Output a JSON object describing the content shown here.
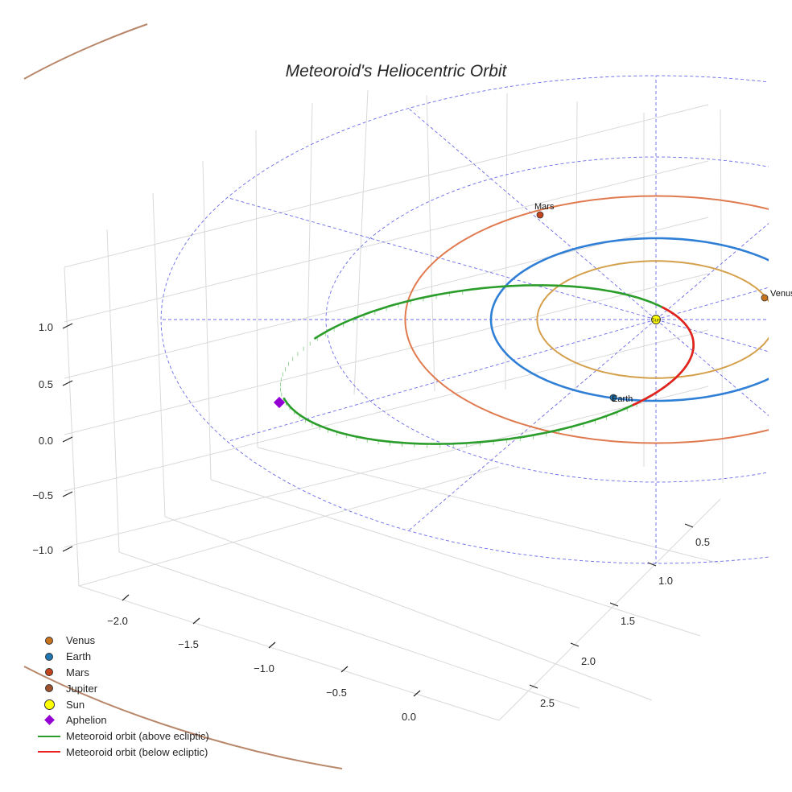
{
  "chart_data": {
    "type": "3d-line",
    "title": "Meteoroid's Heliocentric Orbit",
    "z_ticks": [
      "1.0",
      "0.5",
      "0.0",
      "−0.5",
      "−1.0"
    ],
    "x_ticks": [
      "−2.0",
      "−1.5",
      "−1.0",
      "−0.5",
      "0.0"
    ],
    "y_ticks": [
      "0.5",
      "1.0",
      "1.5",
      "2.0",
      "2.5"
    ],
    "planets": [
      {
        "name": "Venus",
        "label": "Venus",
        "semi_major_axis_au": 0.72,
        "color": "#d4a04b",
        "marker_color": "#c8741f"
      },
      {
        "name": "Earth",
        "label": "Earth",
        "semi_major_axis_au": 1.0,
        "color": "#2f7fd6",
        "marker_color": "#1f77b4"
      },
      {
        "name": "Mars",
        "label": "Mars",
        "semi_major_axis_au": 1.52,
        "color": "#e07b50",
        "marker_color": "#c4451c"
      },
      {
        "name": "Jupiter",
        "label": "Jupiter",
        "semi_major_axis_au": 5.2,
        "color": "#b8876a",
        "marker_color": "#a0522d"
      }
    ],
    "sun": {
      "label": "Sun",
      "color": "#ffff00"
    },
    "aphelion": {
      "label": "Aphelion",
      "color": "#9400d3"
    },
    "meteoroid": {
      "above_label": "Meteoroid orbit (above ecliptic)",
      "below_label": "Meteoroid orbit (below ecliptic)",
      "above_color": "#2a9d2a",
      "below_color": "#e82020"
    },
    "reference_grid": {
      "color": "#6a6ae6",
      "rings": 3,
      "spokes": 12
    }
  },
  "legend": [
    {
      "label": "Venus",
      "kind": "dot",
      "color": "#c8741f"
    },
    {
      "label": "Earth",
      "kind": "dot",
      "color": "#1f77b4"
    },
    {
      "label": "Mars",
      "kind": "dot",
      "color": "#c4451c"
    },
    {
      "label": "Jupiter",
      "kind": "dot",
      "color": "#a0522d"
    },
    {
      "label": "Sun",
      "kind": "sun",
      "color": "#ffff00"
    },
    {
      "label": "Aphelion",
      "kind": "diamond",
      "color": "#9400d3"
    },
    {
      "label": "Meteoroid orbit (above ecliptic)",
      "kind": "line",
      "color": "#2a9d2a"
    },
    {
      "label": "Meteoroid orbit (below ecliptic)",
      "kind": "line",
      "color": "#e82020"
    }
  ]
}
